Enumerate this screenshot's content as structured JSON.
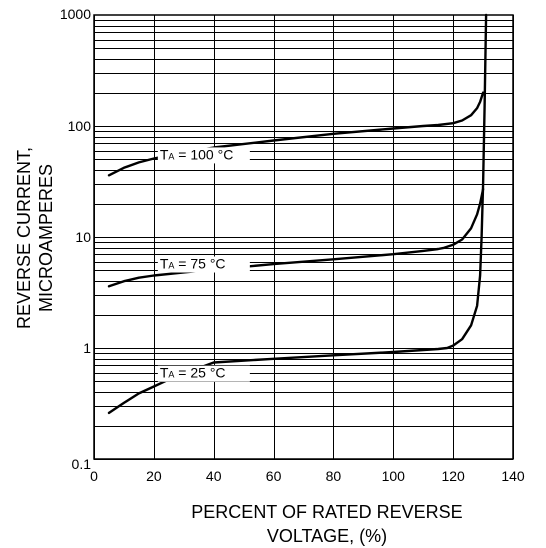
{
  "chart_data": {
    "type": "line",
    "title": "",
    "xlabel": [
      "PERCENT OF RATED REVERSE",
      "VOLTAGE, (%)"
    ],
    "ylabel": [
      "REVERSE CURRENT,",
      "MICROAMPERES"
    ],
    "xlim": [
      0,
      140
    ],
    "ylim": [
      0.1,
      1000
    ],
    "yscale": "log",
    "grid": true,
    "x_ticks": [
      0,
      20,
      40,
      60,
      80,
      100,
      120,
      140
    ],
    "x_tick_labels": [
      "0",
      "20",
      "40",
      "60",
      "80",
      "100",
      "120",
      "140"
    ],
    "y_ticks": [
      0.1,
      1,
      10,
      100,
      1000
    ],
    "y_tick_labels": [
      "0.1",
      "1",
      "10",
      "100",
      "1000"
    ],
    "series": [
      {
        "label_main": "T",
        "label_sub": "A",
        "label_rest": " = 100 °C",
        "label_at": [
          22,
          50
        ],
        "x": [
          5,
          10,
          15,
          20,
          30,
          40,
          60,
          80,
          100,
          110,
          115,
          120,
          123,
          126,
          128,
          129,
          130
        ],
        "y": [
          36,
          42,
          47,
          51,
          58,
          64,
          74,
          85,
          95,
          100,
          102,
          106,
          112,
          125,
          145,
          165,
          200
        ]
      },
      {
        "label_main": "T",
        "label_sub": "A",
        "label_rest": " = 75 °C",
        "label_at": [
          22,
          5.2
        ],
        "x": [
          5,
          10,
          15,
          20,
          30,
          40,
          60,
          80,
          100,
          110,
          115,
          117,
          120,
          123,
          126,
          128,
          129,
          130
        ],
        "y": [
          3.6,
          4.0,
          4.3,
          4.5,
          4.8,
          5.1,
          5.7,
          6.3,
          7.0,
          7.5,
          7.8,
          8.0,
          8.5,
          9.5,
          12,
          16,
          20,
          27
        ]
      },
      {
        "label_main": "T",
        "label_sub": "A",
        "label_rest": " = 25 °C",
        "label_at": [
          22,
          0.54
        ],
        "x": [
          5,
          10,
          15,
          20,
          25,
          30,
          35,
          40,
          60,
          80,
          100,
          110,
          115,
          118,
          120,
          123,
          126,
          128,
          129,
          129.5,
          130,
          130.5,
          131
        ],
        "y": [
          0.26,
          0.32,
          0.39,
          0.45,
          0.52,
          0.59,
          0.66,
          0.74,
          0.8,
          0.86,
          0.92,
          0.96,
          0.98,
          1.0,
          1.05,
          1.2,
          1.6,
          2.4,
          4.5,
          10,
          30,
          150,
          1000
        ]
      }
    ]
  }
}
